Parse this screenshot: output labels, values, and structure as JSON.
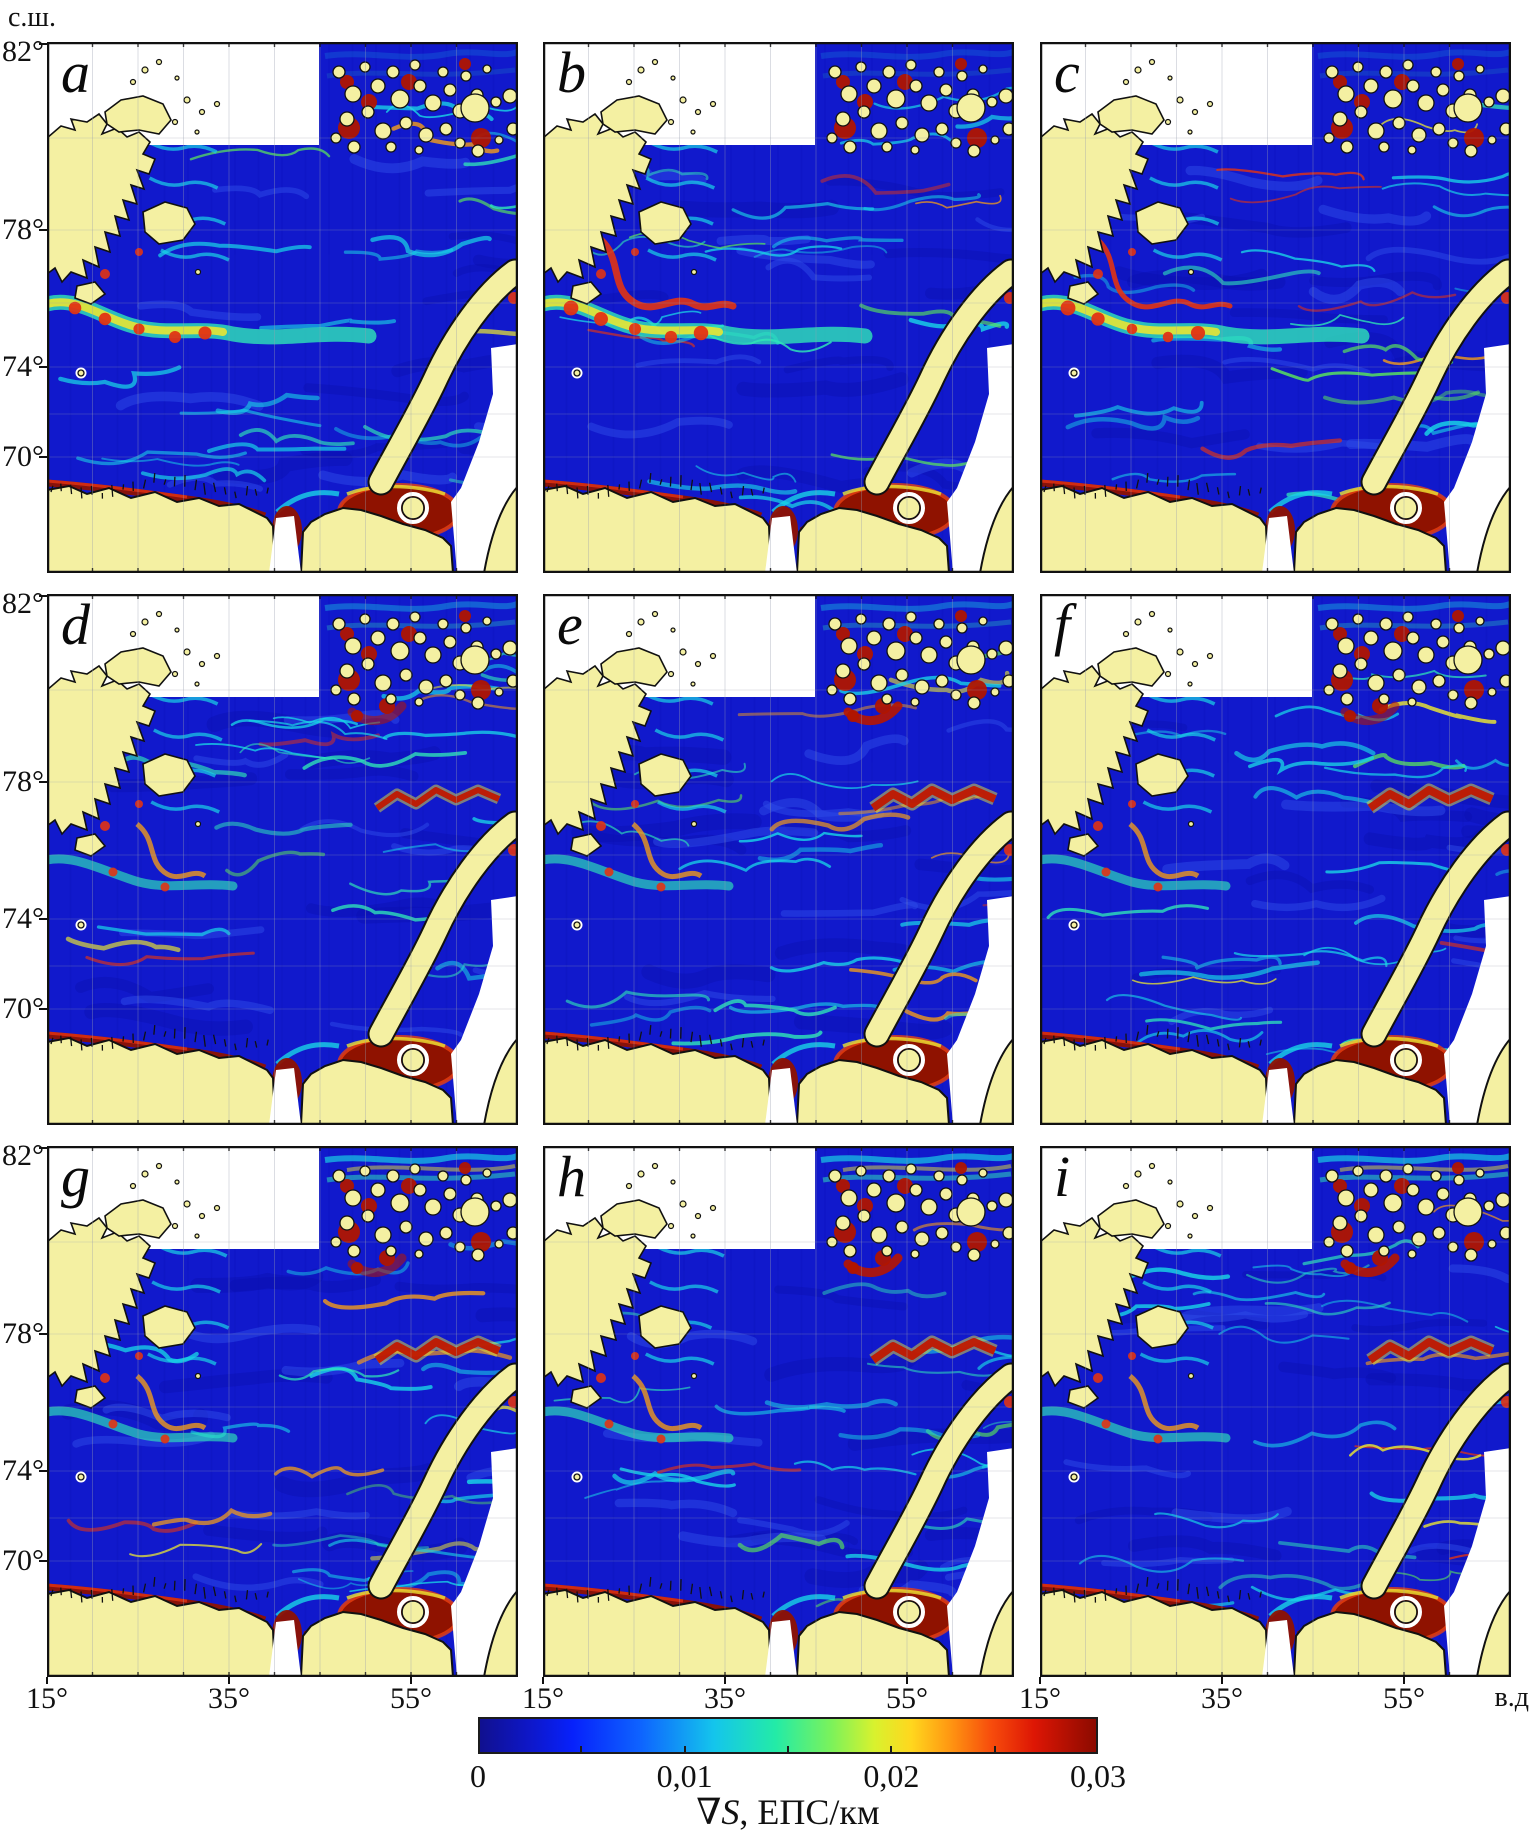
{
  "axes": {
    "lat_unit": "с.ш.",
    "lon_unit": "в.д",
    "lat_ticks": [
      "82°",
      "78°",
      "74°",
      "70°"
    ],
    "lon_ticks": [
      "15°",
      "35°",
      "55°"
    ]
  },
  "panels": [
    {
      "label": "a"
    },
    {
      "label": "b"
    },
    {
      "label": "c"
    },
    {
      "label": "d"
    },
    {
      "label": "e"
    },
    {
      "label": "f"
    },
    {
      "label": "g"
    },
    {
      "label": "h"
    },
    {
      "label": "i"
    }
  ],
  "colorbar": {
    "tick_labels": [
      "0",
      "0,01",
      "0,02",
      "0,03"
    ],
    "title": {
      "symbol": "∇",
      "variable": "S",
      "rest": ", ЕПС/км"
    }
  },
  "colors": {
    "no_data": "#FFFFFF",
    "sea": "#1119CC",
    "sea_dark": "#0B10AF",
    "sea_light": "#2E4BE8",
    "cyan": "#19D3E6",
    "teal": "#2FE6B8",
    "green": "#59E35C",
    "yellow": "#E8E433",
    "orange": "#F09A1C",
    "red": "#E23313",
    "dark_red": "#8F1200",
    "land": "#F4F0A2",
    "coast": "#111111",
    "grid": "#9AA0B0",
    "jet_stops": [
      "#10108F 0%",
      "#0E17C8 8%",
      "#0721FB 15%",
      "#0E63FF 26%",
      "#14C5EC 38%",
      "#23EBA7 48%",
      "#7BF25B 57%",
      "#D8F22E 64%",
      "#FFD71E 70%",
      "#FF9A12 76%",
      "#F74C0C 83%",
      "#DD1604 90%",
      "#8C0A00 100%"
    ]
  },
  "chart_data": {
    "type": "heatmap",
    "variable": "∇S",
    "unit": "ЕПС/км",
    "colorbar_range": [
      0,
      0.03
    ],
    "colorbar_ticks": [
      0,
      0.01,
      0.02,
      0.03
    ],
    "panel_labels": [
      "a",
      "b",
      "c",
      "d",
      "e",
      "f",
      "g",
      "h",
      "i"
    ],
    "lat_ticks_deg_n": [
      82,
      78,
      74,
      70
    ],
    "lon_ticks_deg_e": [
      15,
      35,
      55
    ],
    "grid": true,
    "legend_position": "bottom"
  }
}
